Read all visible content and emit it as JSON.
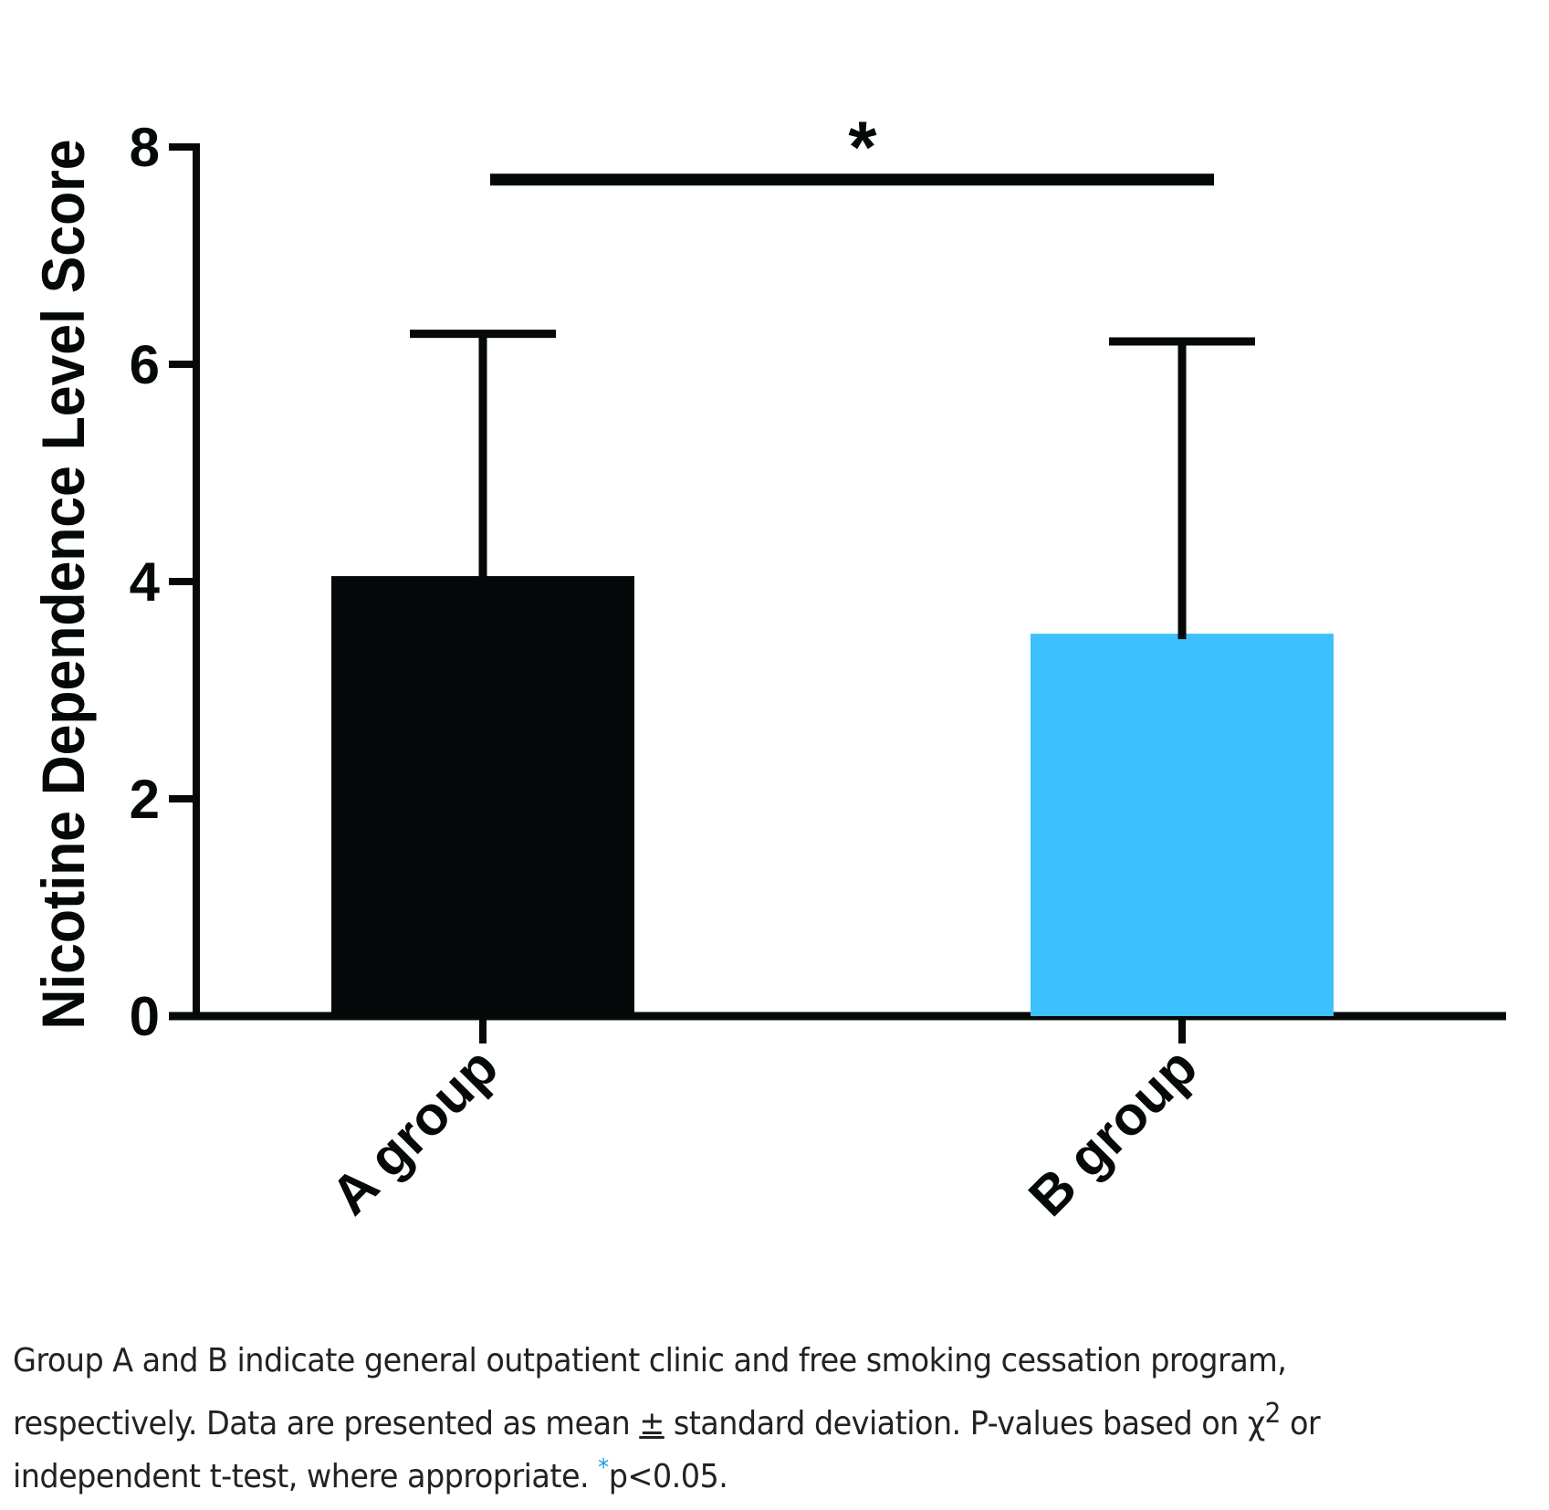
{
  "chart_data": {
    "type": "bar",
    "title": "",
    "xlabel": "",
    "ylabel": "Nicotine Dependence Level Score",
    "ylim": [
      0,
      8
    ],
    "yticks": [
      0,
      2,
      4,
      6,
      8
    ],
    "grid": false,
    "legend": "none",
    "categories": [
      "A group",
      "B group"
    ],
    "values": [
      4.05,
      3.52
    ],
    "error_upper": [
      2.23,
      2.69
    ],
    "colors": [
      "#05090a",
      "#3cc1fd"
    ],
    "error_bar_color": "#05090a",
    "significance": {
      "between": [
        "A group",
        "B group"
      ],
      "label": "*",
      "level": 7.7
    }
  },
  "caption": {
    "line1": "Group A and B indicate general outpatient clinic and free smoking cessation program,",
    "line2_a": "respectively. Data are presented as mean ",
    "line2_pm": "±",
    "line2_b": " standard deviation. P-values based on χ",
    "line2_sup": "2",
    "line2_c": " or",
    "line3_a": "independent t-test, where appropriate. ",
    "line3_star": "*",
    "line3_b": "p<0.05."
  }
}
